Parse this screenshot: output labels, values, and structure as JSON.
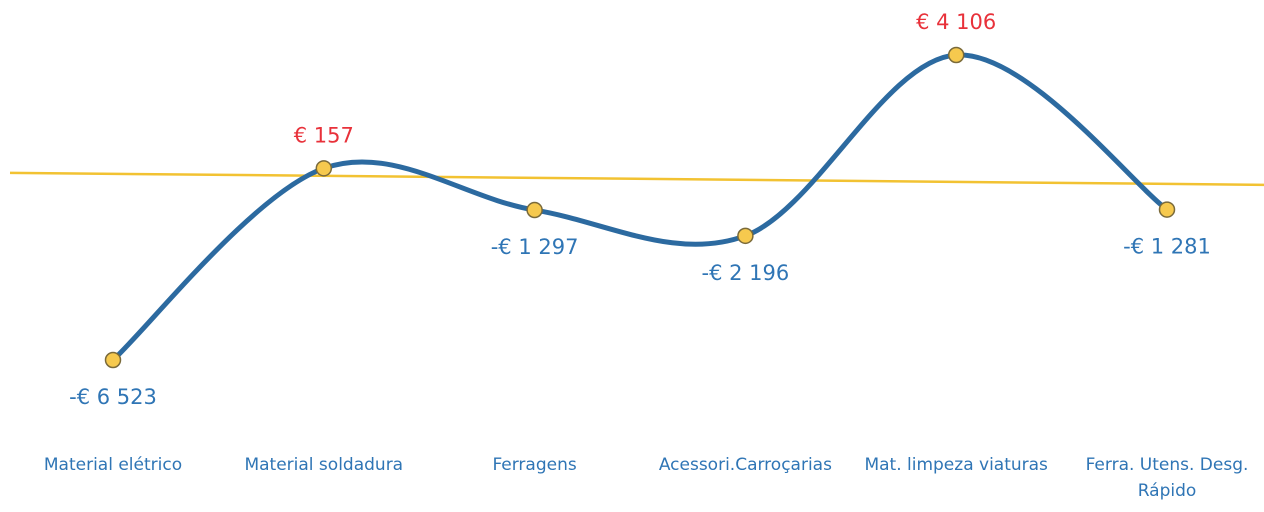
{
  "chart_data": {
    "type": "line",
    "categories": [
      "Material elétrico",
      "Material soldadura",
      "Ferragens",
      "Acessori.Carroçarias",
      "Mat. limpeza viaturas",
      "Ferra. Utens. Desg. Rápido"
    ],
    "series": [
      {
        "color": "#2c6aa0",
        "values": [
          -6523,
          157,
          -1297,
          -2196,
          4106,
          -1281
        ],
        "value_labels": [
          "-€ 6 523",
          "€ 157",
          "-€ 1 297",
          "-€ 2 196",
          "€ 4 106",
          "-€ 1 281"
        ]
      }
    ],
    "marker_color": "#f6c94e",
    "zero_line_color": "#f2c232",
    "positive_label_color": "#e8313a",
    "negative_label_color": "#2f75b5",
    "category_label_color": "#2f75b5"
  }
}
